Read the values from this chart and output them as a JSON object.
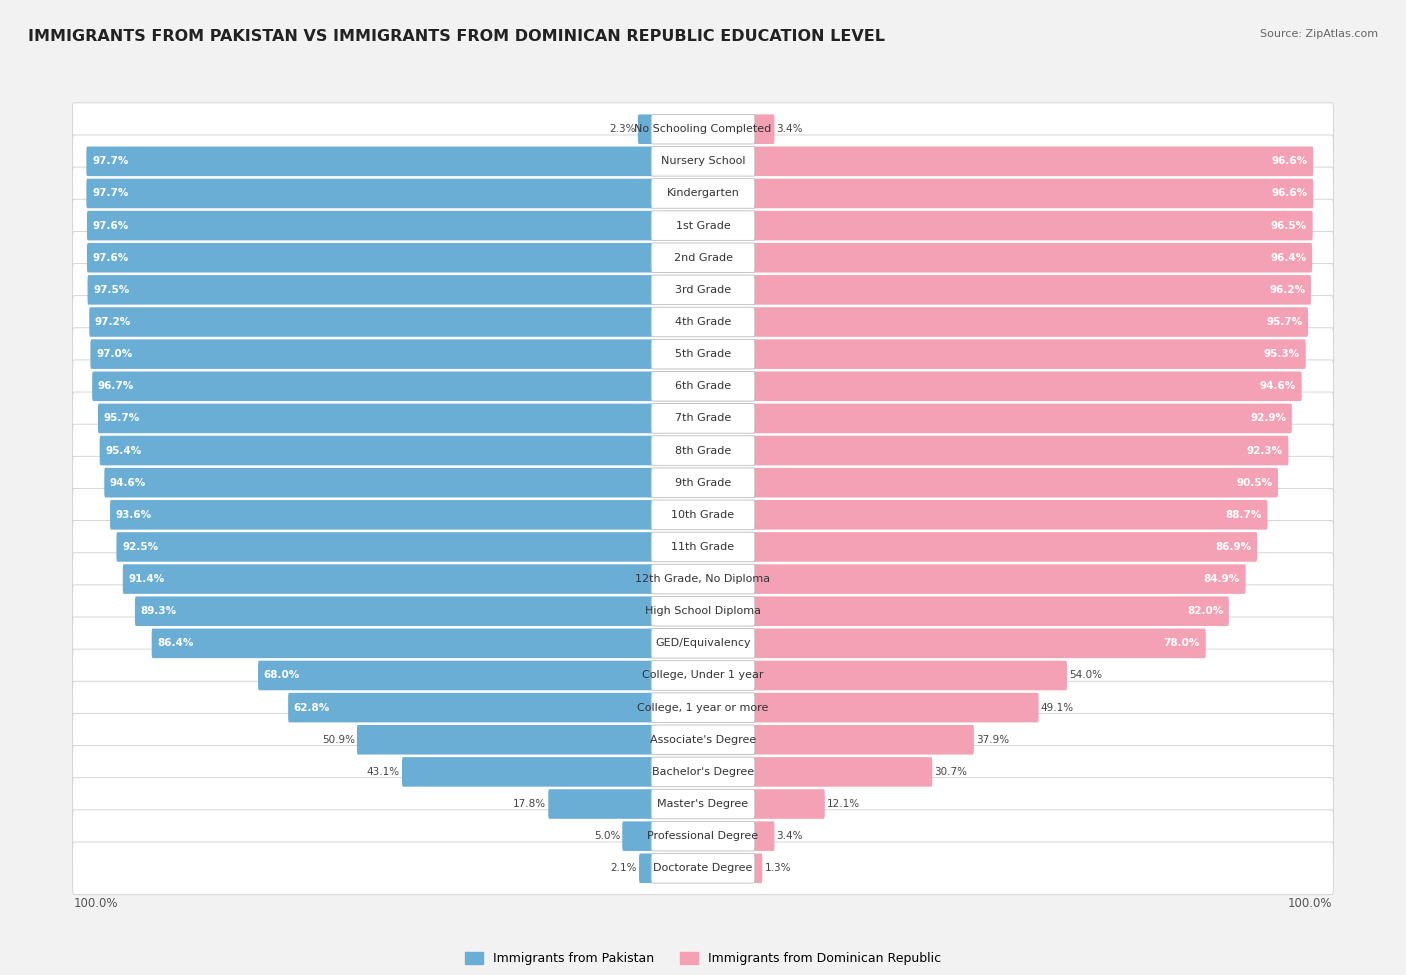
{
  "title": "IMMIGRANTS FROM PAKISTAN VS IMMIGRANTS FROM DOMINICAN REPUBLIC EDUCATION LEVEL",
  "source": "Source: ZipAtlas.com",
  "categories": [
    "No Schooling Completed",
    "Nursery School",
    "Kindergarten",
    "1st Grade",
    "2nd Grade",
    "3rd Grade",
    "4th Grade",
    "5th Grade",
    "6th Grade",
    "7th Grade",
    "8th Grade",
    "9th Grade",
    "10th Grade",
    "11th Grade",
    "12th Grade, No Diploma",
    "High School Diploma",
    "GED/Equivalency",
    "College, Under 1 year",
    "College, 1 year or more",
    "Associate's Degree",
    "Bachelor's Degree",
    "Master's Degree",
    "Professional Degree",
    "Doctorate Degree"
  ],
  "pakistan_values": [
    2.3,
    97.7,
    97.7,
    97.6,
    97.6,
    97.5,
    97.2,
    97.0,
    96.7,
    95.7,
    95.4,
    94.6,
    93.6,
    92.5,
    91.4,
    89.3,
    86.4,
    68.0,
    62.8,
    50.9,
    43.1,
    17.8,
    5.0,
    2.1
  ],
  "dominican_values": [
    3.4,
    96.6,
    96.6,
    96.5,
    96.4,
    96.2,
    95.7,
    95.3,
    94.6,
    92.9,
    92.3,
    90.5,
    88.7,
    86.9,
    84.9,
    82.0,
    78.0,
    54.0,
    49.1,
    37.9,
    30.7,
    12.1,
    3.4,
    1.3
  ],
  "pakistan_color": "#6aaed6",
  "dominican_color": "#f4a0b5",
  "pakistan_label": "Immigrants from Pakistan",
  "dominican_label": "Immigrants from Dominican Republic",
  "background_color": "#f2f2f2",
  "title_fontsize": 11.5,
  "source_fontsize": 8,
  "label_fontsize": 8,
  "value_fontsize": 7.5
}
